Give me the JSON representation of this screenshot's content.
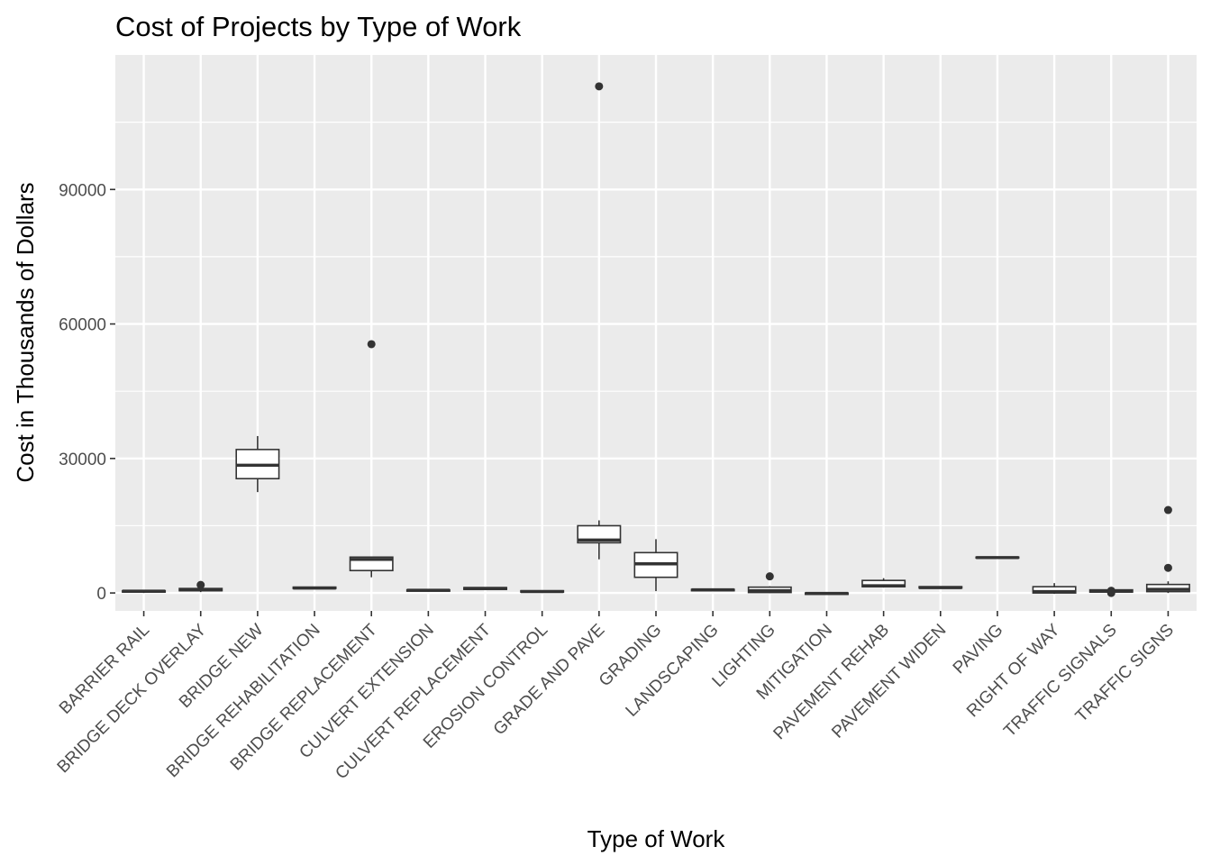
{
  "chart_data": {
    "type": "boxplot",
    "title": "Cost of Projects by Type of Work",
    "xlabel": "Type of Work",
    "ylabel": "Cost in Thousands of Dollars",
    "ylim": [
      -4000,
      120000
    ],
    "yticks": [
      0,
      30000,
      60000,
      90000
    ],
    "yticks_labels": [
      "0",
      "30000",
      "60000",
      "90000"
    ],
    "grid": true,
    "background": "#EBEBEB",
    "gridline_color": "#FFFFFF",
    "box_stroke": "#333333",
    "box_fill": "#FFFFFF",
    "categories": [
      "BARRIER RAIL",
      "BRIDGE DECK OVERLAY",
      "BRIDGE NEW",
      "BRIDGE REHABILITATION",
      "BRIDGE REPLACEMENT",
      "CULVERT EXTENSION",
      "CULVERT REPLACEMENT",
      "EROSION CONTROL",
      "GRADE AND PAVE",
      "GRADING",
      "LANDSCAPING",
      "LIGHTING",
      "MITIGATION",
      "PAVEMENT REHAB",
      "PAVEMENT WIDEN",
      "PAVING",
      "RIGHT OF WAY",
      "TRAFFIC SIGNALS",
      "TRAFFIC SIGNS"
    ],
    "boxes": [
      {
        "min": 0,
        "q1": 200,
        "median": 400,
        "q3": 500,
        "max": 600,
        "outliers": []
      },
      {
        "min": 200,
        "q1": 500,
        "median": 700,
        "q3": 1000,
        "max": 1300,
        "outliers": [
          1800
        ]
      },
      {
        "min": 22500,
        "q1": 25500,
        "median": 28500,
        "q3": 32000,
        "max": 35000,
        "outliers": []
      },
      {
        "min": 900,
        "q1": 1000,
        "median": 1100,
        "q3": 1300,
        "max": 1400,
        "outliers": []
      },
      {
        "min": 3500,
        "q1": 5000,
        "median": 7500,
        "q3": 8000,
        "max": 8000,
        "outliers": [
          55500
        ]
      },
      {
        "min": 300,
        "q1": 400,
        "median": 600,
        "q3": 700,
        "max": 800,
        "outliers": []
      },
      {
        "min": 700,
        "q1": 800,
        "median": 1000,
        "q3": 1200,
        "max": 1300,
        "outliers": []
      },
      {
        "min": 100,
        "q1": 200,
        "median": 300,
        "q3": 500,
        "max": 600,
        "outliers": []
      },
      {
        "min": 7500,
        "q1": 11200,
        "median": 11800,
        "q3": 15000,
        "max": 16200,
        "outliers": [
          113000
        ]
      },
      {
        "min": 400,
        "q1": 3500,
        "median": 6500,
        "q3": 9000,
        "max": 12000,
        "outliers": []
      },
      {
        "min": 400,
        "q1": 500,
        "median": 700,
        "q3": 800,
        "max": 900,
        "outliers": []
      },
      {
        "min": 0,
        "q1": 100,
        "median": 500,
        "q3": 1300,
        "max": 1500,
        "outliers": [
          3700
        ]
      },
      {
        "min": -400,
        "q1": -300,
        "median": -100,
        "q3": 0,
        "max": 100,
        "outliers": []
      },
      {
        "min": 1200,
        "q1": 1400,
        "median": 1600,
        "q3": 2800,
        "max": 3300,
        "outliers": []
      },
      {
        "min": 1000,
        "q1": 1100,
        "median": 1200,
        "q3": 1400,
        "max": 1500,
        "outliers": []
      },
      {
        "min": 7800,
        "q1": 7800,
        "median": 7900,
        "q3": 8000,
        "max": 8000,
        "outliers": []
      },
      {
        "min": -200,
        "q1": 0,
        "median": 300,
        "q3": 1400,
        "max": 2200,
        "outliers": []
      },
      {
        "min": 0,
        "q1": 200,
        "median": 400,
        "q3": 700,
        "max": 900,
        "outliers": [
          0,
          500
        ]
      },
      {
        "min": 0,
        "q1": 300,
        "median": 800,
        "q3": 1900,
        "max": 2600,
        "outliers": [
          5600,
          18500
        ]
      }
    ]
  }
}
